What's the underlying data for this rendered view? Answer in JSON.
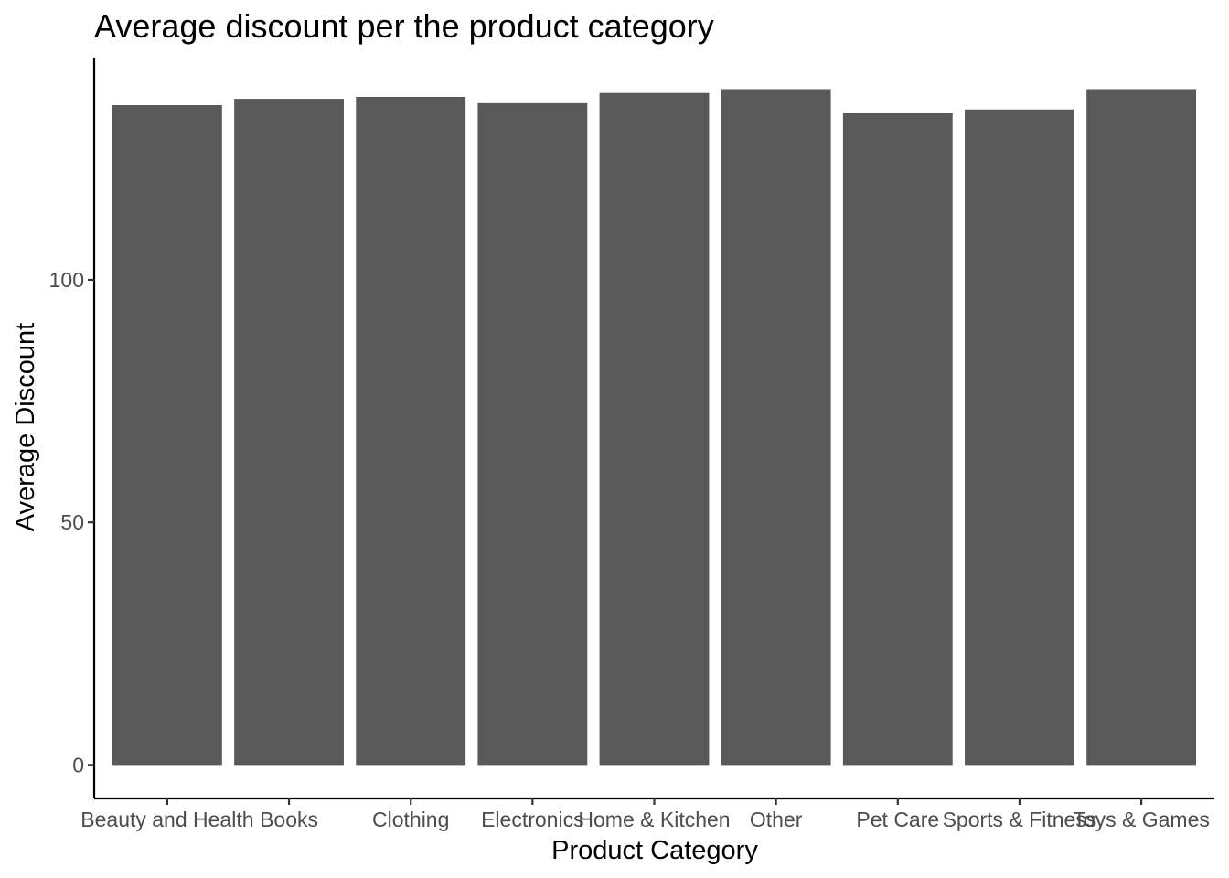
{
  "chart_data": {
    "type": "bar",
    "title": "Average discount per the product category",
    "xlabel": "Product Category",
    "ylabel": "Average Discount",
    "categories": [
      "Beauty and Health",
      "Books",
      "Clothing",
      "Electronics",
      "Home & Kitchen",
      "Other",
      "Pet Care",
      "Sports & Fitness",
      "Toys & Games"
    ],
    "values": [
      136.0,
      137.3,
      137.7,
      136.4,
      138.5,
      139.3,
      134.3,
      135.1,
      139.3
    ],
    "ylim": [
      -6.9,
      145.8
    ],
    "yticks": [
      0,
      50,
      100
    ],
    "grid": false,
    "bar_color": "#595959"
  }
}
